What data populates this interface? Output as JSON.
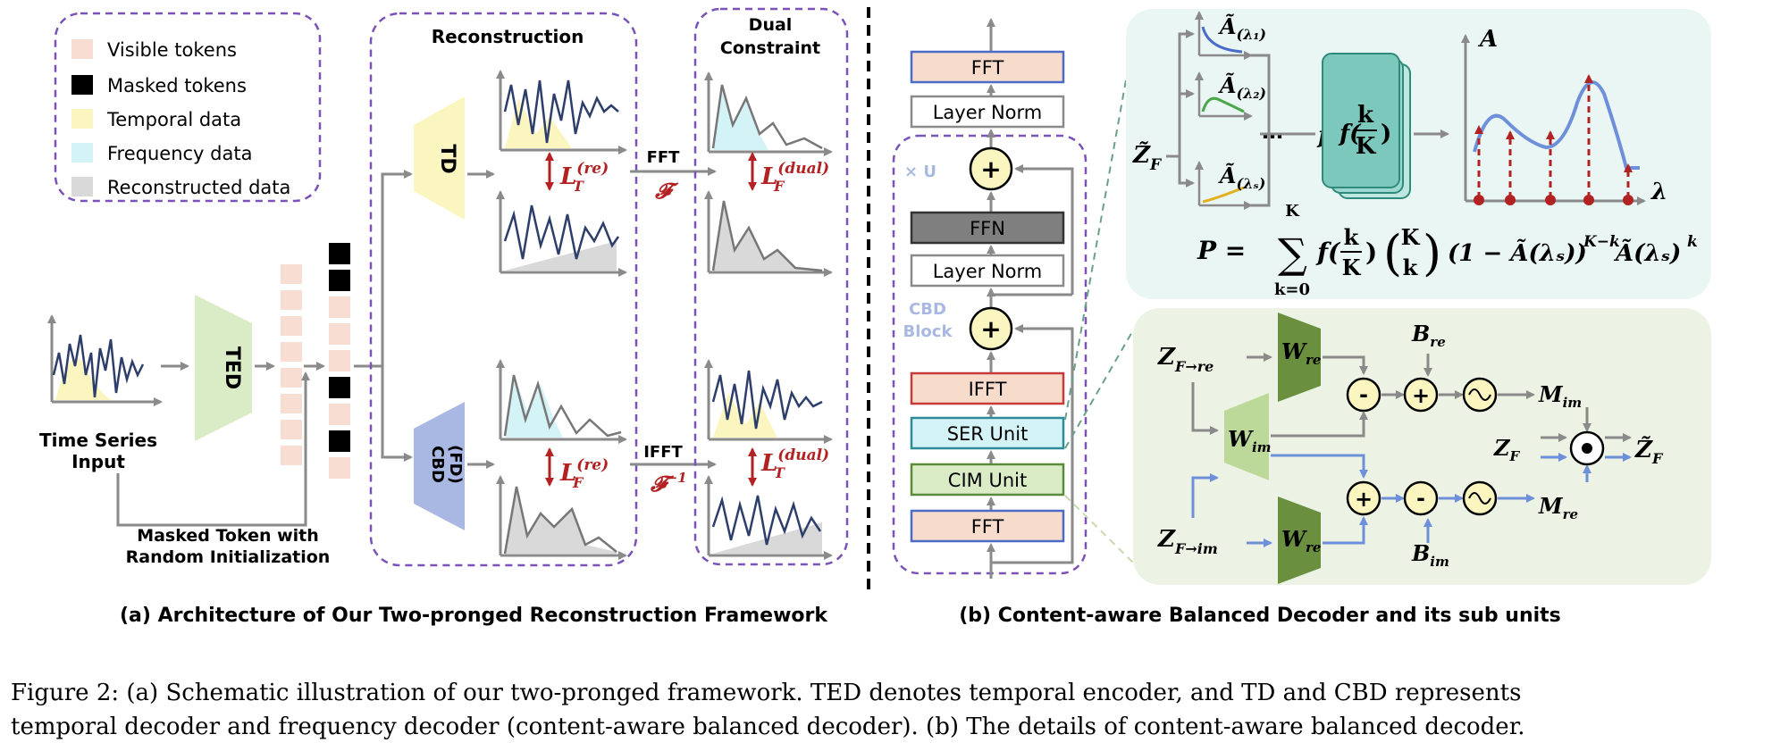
{
  "legend": {
    "visible": "Visible tokens",
    "masked": "Masked tokens",
    "temporal": "Temporal data",
    "frequency": "Frequency data",
    "reconstructed": "Reconstructed data"
  },
  "panel_a": {
    "input_label_1": "Time Series",
    "input_label_2": "Input",
    "ted": "TED",
    "masked_note_1": "Masked Token with",
    "masked_note_2": "Random Initialization",
    "reconstruction_title": "Reconstruction",
    "dual_title_1": "Dual",
    "dual_title_2": "Constraint",
    "td": "TD",
    "cbd_1": "CBD",
    "cbd_2": "(FD)",
    "fft": "FFT",
    "ifft": "IFFT",
    "loss_re": "L",
    "loss_re_sup": "(re)",
    "loss_dual_sup": "(dual)",
    "loss_sub_t": "T",
    "loss_sub_f": "F",
    "fourier": "𝓕",
    "inverse_sup": "−1",
    "caption": "(a) Architecture of Our Two-pronged Reconstruction Framework"
  },
  "panel_b": {
    "fft_top": "FFT",
    "layer_norm_top": "Layer Norm",
    "xu": "× U",
    "ffn": "FFN",
    "layer_norm_mid": "Layer Norm",
    "cbd_block_1": "CBD",
    "cbd_block_2": "Block",
    "ifft": "IFFT",
    "ser_unit": "SER Unit",
    "cim_unit": "CIM Unit",
    "fft_bottom": "FFT",
    "plus": "+",
    "caption": "(b) Content-aware Balanced Decoder and its sub units"
  },
  "top_right": {
    "z_f": "Z̃",
    "z_f_sub": "F",
    "a_lambda1": "Ã",
    "sub_1": "(λ₁)",
    "sub_2": "(λ₂)",
    "sub_s": "(λₛ)",
    "dots": "…",
    "f_k": "f(",
    "k": "k",
    "K": "K",
    "paren_close": ")",
    "axis_a": "A",
    "axis_lambda": "λ",
    "formula_p": "P =",
    "sum_top": "K",
    "sum_bottom": "k=0",
    "formula_rest": "(1 − Ã(λₛ))",
    "exp_1": "K−k",
    "formula_tail": "Ã(λₛ)",
    "exp_2": "k"
  },
  "bottom_right": {
    "z_re": "Z",
    "z_re_sub": "F→re",
    "z_im_sub": "F→im",
    "w_re": "W",
    "w_re_sub": "re",
    "w_im_sub": "im",
    "b_re": "B",
    "b_re_sub": "re",
    "b_im_sub": "im",
    "m_im": "M",
    "m_im_sub": "im",
    "m_re_sub": "re",
    "z_f": "Z",
    "z_f_sub": "F",
    "z_f_out": "Z̃",
    "minus": "-",
    "plus": "+"
  },
  "figure_caption_1": "Figure 2: (a) Schematic illustration of our two-pronged framework. TED denotes temporal encoder, and TD and CBD represents",
  "figure_caption_2": "temporal decoder and frequency decoder (content-aware balanced decoder). (b) The details of content-aware balanced decoder."
}
